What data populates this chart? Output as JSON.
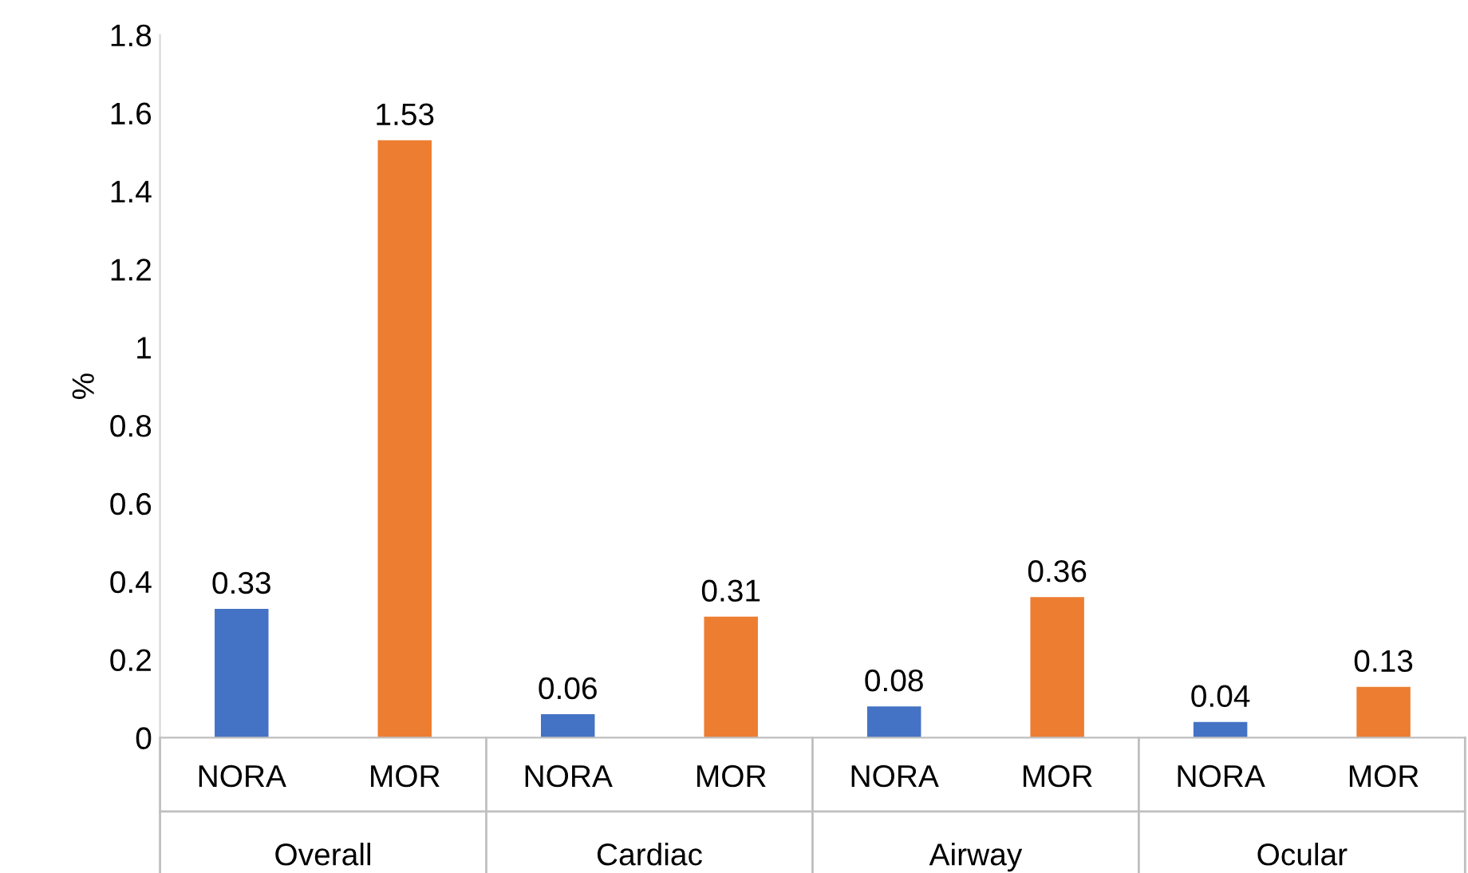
{
  "chart_data": {
    "type": "bar",
    "ylabel": "%",
    "categories": [
      "NORA",
      "MOR",
      "NORA",
      "MOR",
      "NORA",
      "MOR",
      "NORA",
      "MOR"
    ],
    "values": [
      0.33,
      1.53,
      0.06,
      0.31,
      0.08,
      0.36,
      0.04,
      0.13
    ],
    "colors": [
      "#4472c4",
      "#ed7d31",
      "#4472c4",
      "#ed7d31",
      "#4472c4",
      "#ed7d31",
      "#4472c4",
      "#ed7d31"
    ],
    "annotations": [
      "Overall",
      "Cardiac",
      "Airway",
      "Ocular"
    ],
    "ylim": [
      0,
      1.8
    ],
    "yticks": [
      0,
      0.2,
      0.4,
      0.6,
      0.8,
      1,
      1.2,
      1.4,
      1.6,
      1.8
    ],
    "data_labels": true,
    "grid": false,
    "legend": false
  }
}
